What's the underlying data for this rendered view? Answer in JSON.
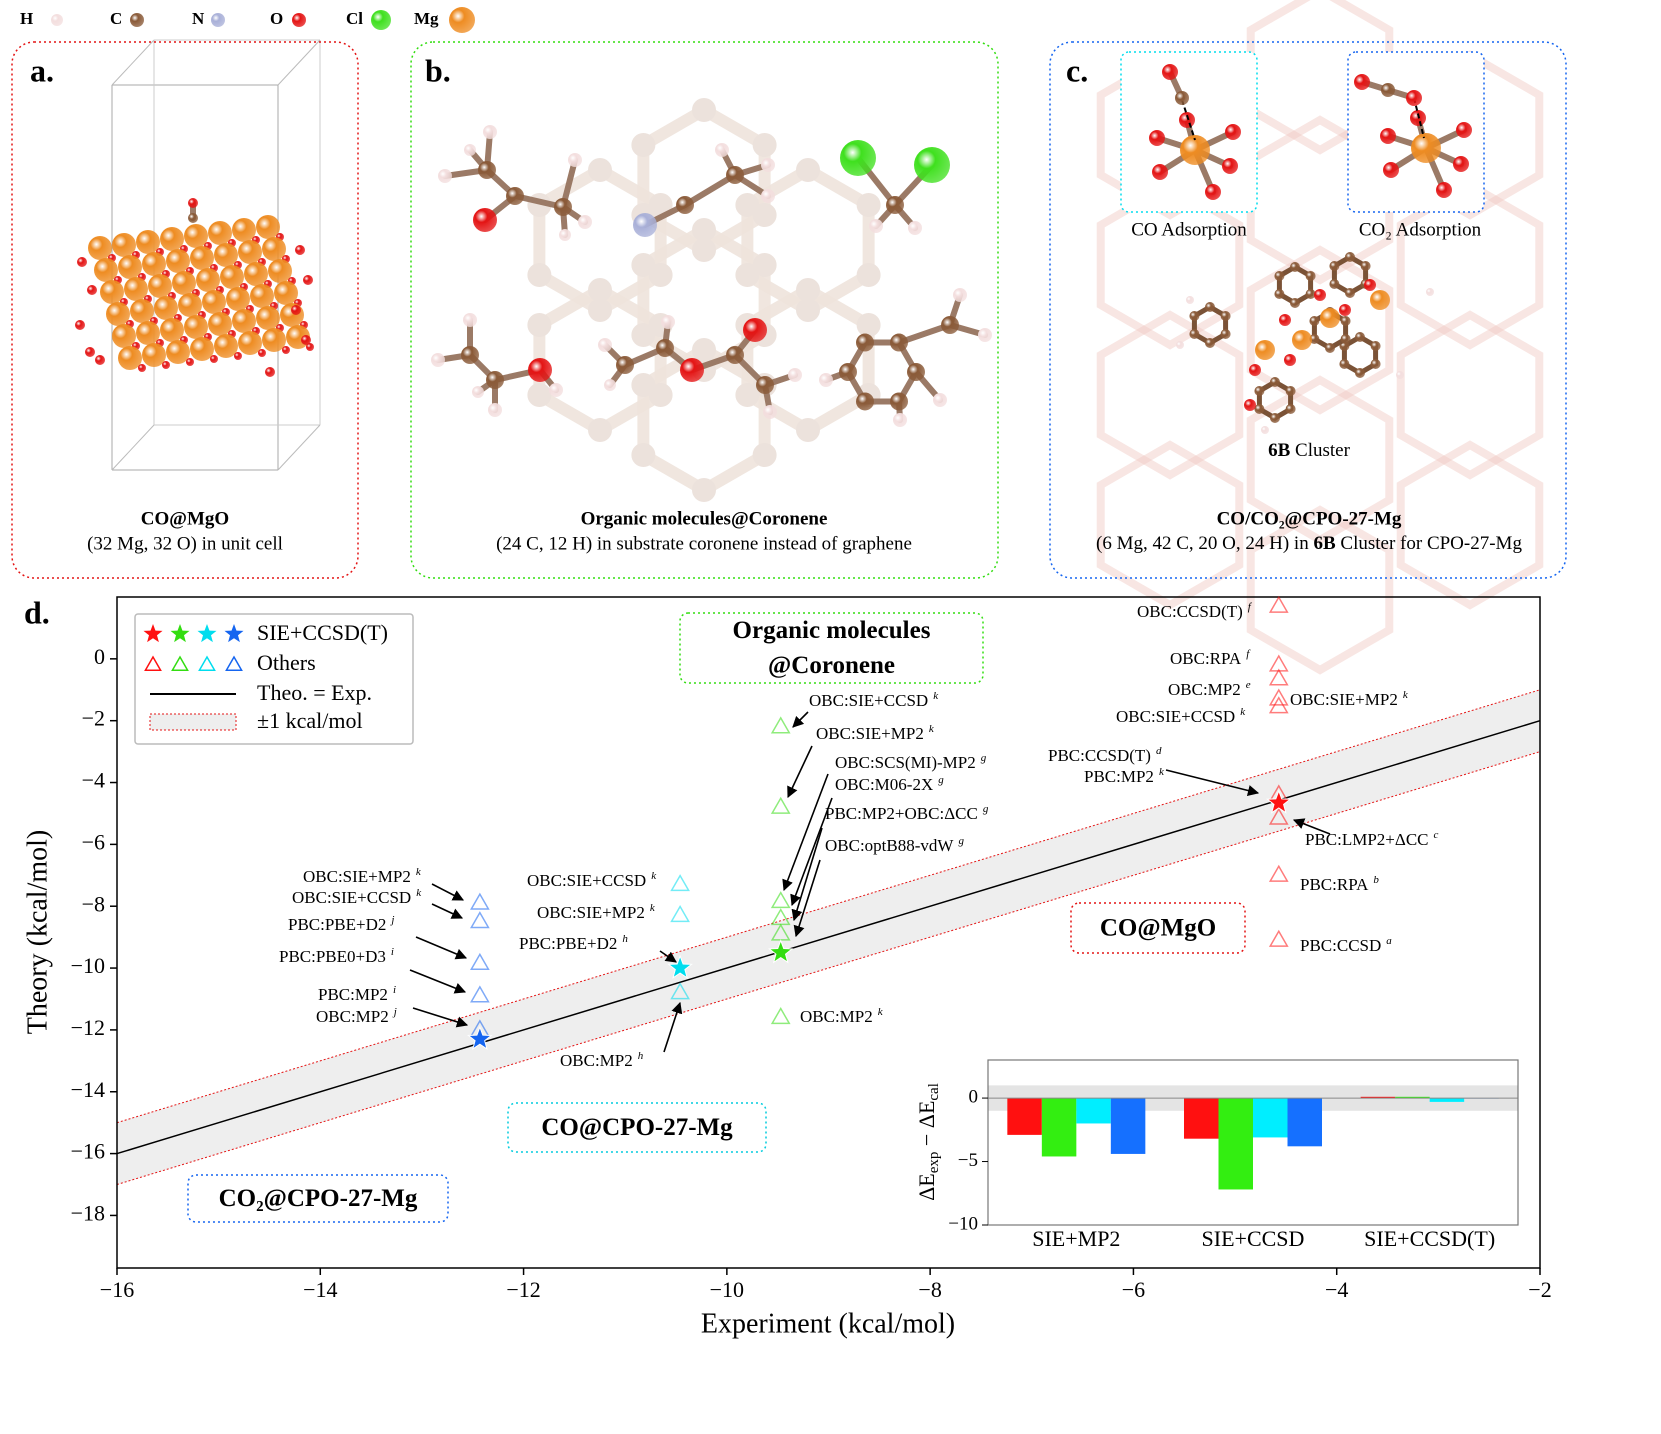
{
  "elements": [
    {
      "symbol": "H",
      "color": "#f3dede"
    },
    {
      "symbol": "C",
      "color": "#8a5a38"
    },
    {
      "symbol": "N",
      "color": "#a9b0d8"
    },
    {
      "symbol": "O",
      "color": "#e41414"
    },
    {
      "symbol": "Cl",
      "color": "#3fe01e"
    },
    {
      "symbol": "Mg",
      "color": "#ee8c22"
    }
  ],
  "panels": [
    {
      "letter": "a.",
      "caption_bold": "CO@MgO",
      "caption": "(32 Mg, 32 O) in unit cell"
    },
    {
      "letter": "b.",
      "molecules": [
        "Acetone",
        "Acetonitrile",
        "Dichloromethane",
        "Ethanol",
        "Ethyl Acetate",
        "Toluene"
      ],
      "caption_bold": "Organic molecules@Coronene",
      "caption": "(24 C, 12 H) in substrate coronene instead of graphene"
    },
    {
      "letter": "c.",
      "sites": [
        "CO Adsorption",
        "CO₂ Adsorption"
      ],
      "cluster": [
        "6B",
        " Cluster"
      ],
      "caption_bold": "CO/CO₂@CPO-27-Mg",
      "caption": [
        "(6 Mg, 42 C, 20 O, 24 H) in ",
        "6B",
        " Cluster for CPO-27-Mg"
      ]
    }
  ],
  "chart_data": [
    {
      "type": "scatter",
      "panel": "d.",
      "xlabel": "Experiment (kcal/mol)",
      "ylabel": "Theory (kcal/mol)",
      "xlim": [
        -16,
        -2
      ],
      "xticks": [
        {
          "value": -16,
          "label": "−16"
        },
        {
          "value": -14,
          "label": "−14"
        },
        {
          "value": -12,
          "label": "−12"
        },
        {
          "value": -10,
          "label": "−10"
        },
        {
          "value": -8,
          "label": "−8"
        },
        {
          "value": -6,
          "label": "−6"
        },
        {
          "value": -4,
          "label": "−4"
        },
        {
          "value": -2,
          "label": "−2"
        }
      ],
      "ylim": [
        -19.7,
        2
      ],
      "yticks": [
        0,
        {
          "value": -2,
          "label": "−2"
        },
        {
          "value": -4,
          "label": "−4"
        },
        {
          "value": -6,
          "label": "−6"
        },
        {
          "value": -8,
          "label": "−8"
        },
        {
          "value": -10,
          "label": "−10"
        },
        {
          "value": -12,
          "label": "−12"
        },
        {
          "value": -14,
          "label": "−14"
        },
        {
          "value": -16,
          "label": "−16"
        },
        {
          "value": -18,
          "label": "−18"
        }
      ],
      "series": [
        {
          "name": "SIE+CCSD(T)",
          "marker": "star",
          "colors": [
            "#ff1010",
            "#33dd11",
            "#00ddee",
            "#1565f0"
          ],
          "x": [
            -4.57,
            -9.47,
            -10.46,
            -12.43
          ],
          "values": [
            -4.66,
            -9.5,
            -10.0,
            -12.3
          ]
        },
        {
          "name": "Others",
          "marker": "triangle",
          "colors": [
            "#ff1010",
            "#ff1010",
            "#ff1010",
            "#ff1010",
            "#ff1010",
            "#ff1010",
            "#ff1010",
            "#ff1010",
            "#ff1010",
            "#33dd11",
            "#33dd11",
            "#33dd11",
            "#33dd11",
            "#33dd11",
            "#33dd11",
            "#00ddee",
            "#00ddee",
            "#00ddee",
            "#1565f0",
            "#1565f0",
            "#1565f0",
            "#1565f0",
            "#1565f0"
          ],
          "x": [
            -4.57,
            -4.57,
            -4.57,
            -4.57,
            -4.57,
            -4.57,
            -4.57,
            -4.57,
            -4.57,
            -9.47,
            -9.47,
            -9.47,
            -9.47,
            -9.47,
            -9.47,
            -10.46,
            -10.46,
            -10.46,
            -12.43,
            -12.43,
            -12.43,
            -12.43,
            -12.43
          ],
          "values": [
            1.7,
            -0.2,
            -0.65,
            -1.3,
            -1.55,
            -4.4,
            -5.15,
            -7.0,
            -9.1,
            -2.2,
            -4.8,
            -7.85,
            -8.4,
            -8.9,
            -11.6,
            -7.3,
            -8.3,
            -10.8,
            -7.9,
            -8.5,
            -9.85,
            -10.9,
            -12.0
          ]
        }
      ],
      "reference": {
        "name": "Theo. = Exp.",
        "color": "#000000"
      },
      "band": {
        "name": "±1 kcal/mol",
        "width": 1,
        "color": "#e41414"
      },
      "annotations": [
        {
          "text": "OBC:SIE+MP2",
          "sup": "k"
        },
        {
          "text": "OBC:SIE+CCSD",
          "sup": "k"
        },
        {
          "text": "PBC:PBE+D2",
          "sup": "j"
        },
        {
          "text": "PBC:PBE0+D3",
          "sup": "i"
        },
        {
          "text": "PBC:MP2",
          "sup": "i"
        },
        {
          "text": "OBC:MP2",
          "sup": "j"
        },
        {
          "text": "OBC:SIE+CCSD",
          "sup": "k"
        },
        {
          "text": "OBC:SIE+MP2",
          "sup": "k"
        },
        {
          "text": "PBC:PBE+D2",
          "sup": "h"
        },
        {
          "text": "OBC:MP2",
          "sup": "h"
        },
        {
          "text": "OBC:SIE+CCSD",
          "sup": "k"
        },
        {
          "text": "OBC:SIE+MP2",
          "sup": "k"
        },
        {
          "text": "OBC:SCS(MI)-MP2",
          "sup": "g"
        },
        {
          "text": "OBC:M06-2X",
          "sup": "g"
        },
        {
          "text": "PBC:MP2+OBC:ΔCC",
          "sup": "g"
        },
        {
          "text": "OBC:optB88-vdW",
          "sup": "g"
        },
        {
          "text": "OBC:MP2",
          "sup": "k"
        },
        {
          "text": "OBC:CCSD(T)",
          "sup": "f"
        },
        {
          "text": "OBC:RPA",
          "sup": "f"
        },
        {
          "text": "OBC:MP2",
          "sup": "e"
        },
        {
          "text": "OBC:SIE+MP2",
          "sup": "k"
        },
        {
          "text": "OBC:SIE+CCSD",
          "sup": "k"
        },
        {
          "text": "PBC:CCSD(T)",
          "sup": "d"
        },
        {
          "text": "PBC:MP2",
          "sup": "k"
        },
        {
          "text": "PBC:LMP2+ΔCC",
          "sup": "c"
        },
        {
          "text": "PBC:RPA",
          "sup": "b"
        },
        {
          "text": "PBC:CCSD",
          "sup": "a"
        }
      ],
      "group_labels": [
        {
          "lines": [
            "Organic molecules",
            "@Coronene"
          ],
          "color": "#33dd11"
        },
        {
          "lines": [
            "CO@MgO"
          ],
          "color": "#e41414"
        },
        {
          "lines": [
            "CO@CPO-27-Mg"
          ],
          "color": "#00ccdd"
        },
        {
          "lines": [
            "CO₂@CPO-27-Mg"
          ],
          "color": "#1565f0"
        }
      ]
    },
    {
      "type": "bar",
      "ylabel": [
        "ΔE",
        "exp",
        " − ΔE",
        "cal"
      ],
      "categories": [
        "SIE+MP2",
        "SIE+CCSD",
        "SIE+CCSD(T)"
      ],
      "series": [
        {
          "color": "#ff1010",
          "values": [
            -2.9,
            -3.2,
            0.1
          ]
        },
        {
          "color": "#33ee11",
          "values": [
            -4.6,
            -7.2,
            0.1
          ]
        },
        {
          "color": "#00eeff",
          "values": [
            -2.0,
            -3.1,
            -0.3
          ]
        },
        {
          "color": "#1570ff",
          "values": [
            -4.4,
            -3.8,
            0
          ]
        }
      ],
      "ylim": [
        -10,
        3
      ],
      "yticks": [
        {
          "value": -10,
          "label": "−10"
        },
        {
          "value": -5,
          "label": "−5"
        },
        0
      ],
      "band": 1
    }
  ]
}
